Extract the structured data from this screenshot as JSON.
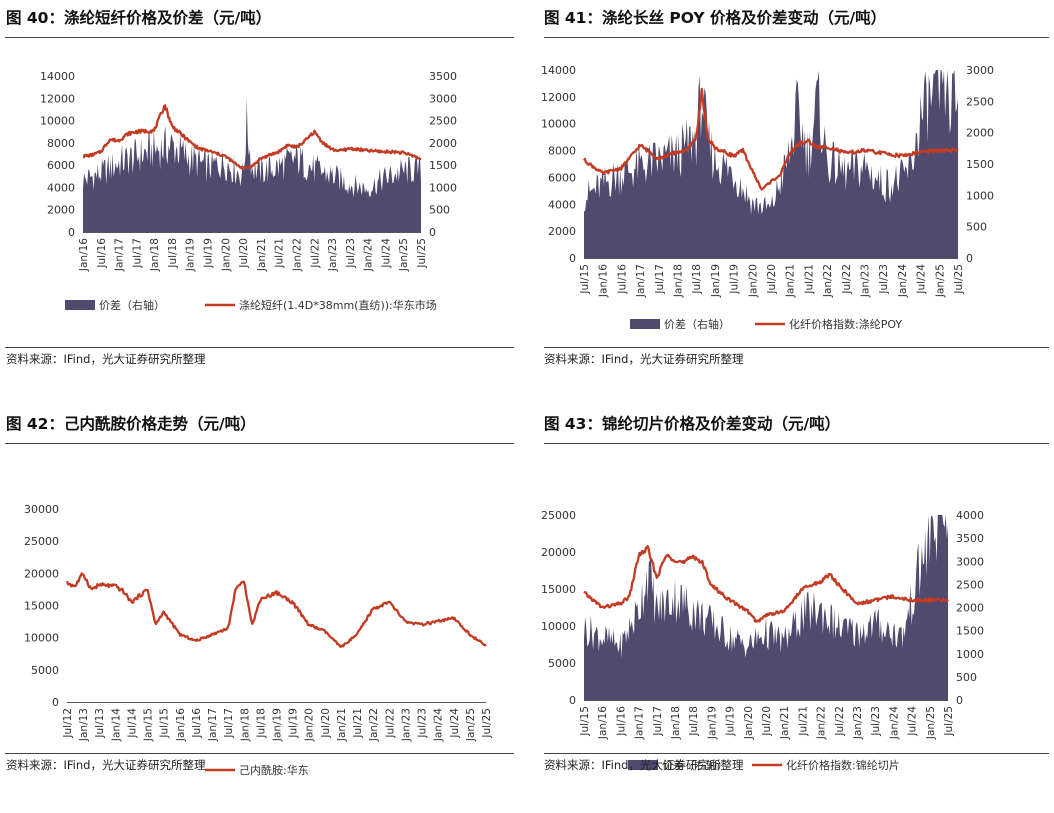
{
  "source_text": "资料来源：IFind，光大证券研究所整理",
  "colors": {
    "bar": "#4f4a6e",
    "line": "#c23b22",
    "axis": "#555555",
    "text": "#333333"
  },
  "chart_data": [
    {
      "id": "fig40",
      "type": "bar",
      "title": "图 40：涤纶短纤价格及价差（元/吨）",
      "x_ticks": [
        "Jan/16",
        "Jul/16",
        "Jan/17",
        "Jul/17",
        "Jan/18",
        "Jul/18",
        "Jan/19",
        "Jul/19",
        "Jan/20",
        "Jul/20",
        "Jan/21",
        "Jul/21",
        "Jan/22",
        "Jul/22",
        "Jan/23",
        "Jul/23",
        "Jan/24",
        "Jul/24",
        "Jan/25",
        "Jul/25"
      ],
      "y_left": {
        "min": 0,
        "max": 14000,
        "ticks": [
          0,
          2000,
          4000,
          6000,
          8000,
          10000,
          12000,
          14000
        ]
      },
      "y_right": {
        "min": 0,
        "max": 3500,
        "ticks": [
          0,
          500,
          1000,
          1500,
          2000,
          2500,
          3000,
          3500
        ]
      },
      "series": [
        {
          "name": "价差（右轴）",
          "type": "area",
          "axis": "right",
          "keys": [
            [
              0,
              1200
            ],
            [
              1,
              1350
            ],
            [
              2,
              1600
            ],
            [
              3,
              1750
            ],
            [
              4,
              1900
            ],
            [
              5,
              2000
            ],
            [
              6,
              1700
            ],
            [
              7,
              1500
            ],
            [
              8,
              1600
            ],
            [
              9,
              1300
            ],
            [
              9.2,
              2500
            ],
            [
              9.5,
              1500
            ],
            [
              10,
              1400
            ],
            [
              11,
              1500
            ],
            [
              12,
              1700
            ],
            [
              13,
              1450
            ],
            [
              14,
              1300
            ],
            [
              15,
              1100
            ],
            [
              16,
              1000
            ],
            [
              17,
              1250
            ],
            [
              18,
              1400
            ],
            [
              19,
              1450
            ],
            [
              19.5,
              1150
            ]
          ]
        },
        {
          "name": "涤纶短纤(1.4D*38mm(直纺)):华东市场",
          "type": "line",
          "axis": "left",
          "keys": [
            [
              0,
              6800
            ],
            [
              0.5,
              6900
            ],
            [
              1,
              7200
            ],
            [
              1.5,
              8300
            ],
            [
              2,
              8200
            ],
            [
              2.5,
              8800
            ],
            [
              3,
              9000
            ],
            [
              4,
              9100
            ],
            [
              4.6,
              11400
            ],
            [
              5,
              9500
            ],
            [
              5.5,
              8800
            ],
            [
              6,
              8100
            ],
            [
              6.5,
              7500
            ],
            [
              7,
              7300
            ],
            [
              8,
              6800
            ],
            [
              8.5,
              6200
            ],
            [
              9,
              5700
            ],
            [
              9.5,
              5900
            ],
            [
              10,
              6600
            ],
            [
              10.5,
              6900
            ],
            [
              11,
              7200
            ],
            [
              11.5,
              7800
            ],
            [
              12,
              7600
            ],
            [
              12.5,
              8200
            ],
            [
              13,
              9000
            ],
            [
              13.5,
              8000
            ],
            [
              14,
              7400
            ],
            [
              14.5,
              7300
            ],
            [
              15,
              7500
            ],
            [
              16,
              7300
            ],
            [
              17,
              7200
            ],
            [
              17.5,
              7200
            ],
            [
              18,
              7100
            ],
            [
              18.5,
              6900
            ],
            [
              19,
              6500
            ],
            [
              19.5,
              6700
            ]
          ]
        }
      ]
    },
    {
      "id": "fig41",
      "type": "bar",
      "title": "图 41：涤纶长丝 POY 价格及价差变动（元/吨）",
      "x_ticks": [
        "Jul/15",
        "Jan/16",
        "Jul/16",
        "Jan/17",
        "Jul/17",
        "Jan/18",
        "Jul/18",
        "Jan/19",
        "Jul/19",
        "Jan/20",
        "Jul/20",
        "Jan/21",
        "Jul/21",
        "Jan/22",
        "Jul/22",
        "Jan/23",
        "Jul/23",
        "Jan/24",
        "Jul/24",
        "Jan/25",
        "Jul/25"
      ],
      "y_left": {
        "min": 0,
        "max": 14000,
        "ticks": [
          0,
          2000,
          4000,
          6000,
          8000,
          10000,
          12000,
          14000
        ]
      },
      "y_right": {
        "min": 0,
        "max": 3000,
        "ticks": [
          0,
          500,
          1000,
          1500,
          2000,
          2500,
          3000
        ]
      },
      "series": [
        {
          "name": "价差（右轴）",
          "type": "area",
          "axis": "right",
          "keys": [
            [
              0,
              1000
            ],
            [
              1,
              1200
            ],
            [
              2,
              1400
            ],
            [
              3,
              1500
            ],
            [
              4,
              1600
            ],
            [
              5,
              1700
            ],
            [
              6,
              2000
            ],
            [
              6.3,
              2700
            ],
            [
              6.6,
              1900
            ],
            [
              7,
              1600
            ],
            [
              8,
              1400
            ],
            [
              9,
              900
            ],
            [
              10,
              800
            ],
            [
              11,
              1700
            ],
            [
              11.4,
              2400
            ],
            [
              12,
              1700
            ],
            [
              12.5,
              2600
            ],
            [
              13,
              1600
            ],
            [
              14,
              1400
            ],
            [
              15,
              1500
            ],
            [
              16,
              1200
            ],
            [
              17,
              1300
            ],
            [
              17.5,
              1500
            ],
            [
              18,
              2300
            ],
            [
              18.5,
              2600
            ],
            [
              19,
              2700
            ],
            [
              19.2,
              3100
            ],
            [
              19.5,
              2500
            ],
            [
              20,
              2600
            ]
          ]
        },
        {
          "name": "化纤价格指数:涤纶POY",
          "type": "line",
          "axis": "left",
          "keys": [
            [
              0,
              7300
            ],
            [
              1,
              6300
            ],
            [
              2,
              6700
            ],
            [
              3,
              8400
            ],
            [
              4,
              7400
            ],
            [
              5,
              7900
            ],
            [
              5.5,
              8000
            ],
            [
              6,
              9000
            ],
            [
              6.3,
              12400
            ],
            [
              6.6,
              9000
            ],
            [
              7,
              8200
            ],
            [
              8,
              7600
            ],
            [
              8.5,
              8000
            ],
            [
              9,
              6500
            ],
            [
              9.5,
              5100
            ],
            [
              10,
              5700
            ],
            [
              10.5,
              6200
            ],
            [
              11,
              7800
            ],
            [
              11.5,
              8500
            ],
            [
              12,
              8700
            ],
            [
              12.5,
              8200
            ],
            [
              13,
              8300
            ],
            [
              14,
              7800
            ],
            [
              15,
              8000
            ],
            [
              16,
              7800
            ],
            [
              17,
              7600
            ],
            [
              18,
              7900
            ],
            [
              19,
              8000
            ],
            [
              20,
              8000
            ]
          ]
        }
      ]
    },
    {
      "id": "fig42",
      "type": "line",
      "title": "图 42：己内酰胺价格走势（元/吨）",
      "x_ticks": [
        "Jul/12",
        "Jan/13",
        "Jul/13",
        "Jan/14",
        "Jul/14",
        "Jan/15",
        "Jul/15",
        "Jan/16",
        "Jul/16",
        "Jan/17",
        "Jul/17",
        "Jan/18",
        "Jul/18",
        "Jan/19",
        "Jul/19",
        "Jan/20",
        "Jul/20",
        "Jan/21",
        "Jul/21",
        "Jan/22",
        "Jul/22",
        "Jan/23",
        "Jul/23",
        "Jan/24",
        "Jul/24",
        "Jan/25",
        "Jul/25"
      ],
      "y_left": {
        "min": 0,
        "max": 30000,
        "ticks": [
          0,
          5000,
          10000,
          15000,
          20000,
          25000,
          30000
        ]
      },
      "series": [
        {
          "name": "己内酰胺:华东",
          "type": "line",
          "axis": "left",
          "keys": [
            [
              0,
              18500
            ],
            [
              0.5,
              18000
            ],
            [
              1,
              20000
            ],
            [
              1.5,
              17500
            ],
            [
              2,
              18200
            ],
            [
              3,
              18000
            ],
            [
              3.5,
              17200
            ],
            [
              4,
              15500
            ],
            [
              5,
              17500
            ],
            [
              5.5,
              12000
            ],
            [
              6,
              14000
            ],
            [
              7,
              10500
            ],
            [
              8,
              9500
            ],
            [
              9,
              10500
            ],
            [
              10,
              11500
            ],
            [
              10.5,
              18000
            ],
            [
              11,
              18500
            ],
            [
              11.5,
              12000
            ],
            [
              12,
              16000
            ],
            [
              13,
              17000
            ],
            [
              14,
              15500
            ],
            [
              15,
              12000
            ],
            [
              16,
              11000
            ],
            [
              17,
              8500
            ],
            [
              18,
              10500
            ],
            [
              19,
              14500
            ],
            [
              20,
              15500
            ],
            [
              21,
              12500
            ],
            [
              22,
              12000
            ],
            [
              23,
              12500
            ],
            [
              24,
              13000
            ],
            [
              25,
              10500
            ],
            [
              26,
              8700
            ]
          ]
        }
      ]
    },
    {
      "id": "fig43",
      "type": "bar",
      "title": "图 43：锦纶切片价格及价差变动（元/吨）",
      "x_ticks": [
        "Jul/15",
        "Jan/16",
        "Jul/16",
        "Jan/17",
        "Jul/17",
        "Jan/18",
        "Jul/18",
        "Jan/19",
        "Jul/19",
        "Jan/20",
        "Jul/20",
        "Jan/21",
        "Jul/21",
        "Jan/22",
        "Jul/22",
        "Jan/23",
        "Jul/23",
        "Jan/24",
        "Jul/24",
        "Jan/25",
        "Jul/25"
      ],
      "y_left": {
        "min": 0,
        "max": 25000,
        "ticks": [
          0,
          5000,
          10000,
          15000,
          20000,
          25000
        ]
      },
      "y_right": {
        "min": 0,
        "max": 4000,
        "ticks": [
          0,
          500,
          1000,
          1500,
          2000,
          2500,
          3000,
          3500,
          4000
        ]
      },
      "series": [
        {
          "name": "价差（右轴）",
          "type": "area",
          "axis": "right",
          "keys": [
            [
              0,
              1600
            ],
            [
              1,
              1400
            ],
            [
              2,
              1200
            ],
            [
              3,
              2000
            ],
            [
              3.5,
              2900
            ],
            [
              4,
              2000
            ],
            [
              5,
              2300
            ],
            [
              6,
              2000
            ],
            [
              7,
              1700
            ],
            [
              8,
              1400
            ],
            [
              9,
              1200
            ],
            [
              10,
              1500
            ],
            [
              11,
              1300
            ],
            [
              12,
              1900
            ],
            [
              13,
              2000
            ],
            [
              14,
              1600
            ],
            [
              15,
              1500
            ],
            [
              16,
              1700
            ],
            [
              17,
              1500
            ],
            [
              17.5,
              1400
            ],
            [
              18,
              2200
            ],
            [
              18.5,
              3000
            ],
            [
              19,
              3600
            ],
            [
              19.5,
              4000
            ],
            [
              20,
              4000
            ]
          ]
        },
        {
          "name": "化纤价格指数:锦纶切片",
          "type": "line",
          "axis": "left",
          "keys": [
            [
              0,
              14500
            ],
            [
              1,
              12500
            ],
            [
              2,
              13000
            ],
            [
              2.5,
              14000
            ],
            [
              3,
              19500
            ],
            [
              3.5,
              20500
            ],
            [
              4,
              16500
            ],
            [
              4.5,
              19500
            ],
            [
              5,
              19000
            ],
            [
              5.5,
              18500
            ],
            [
              6,
              19500
            ],
            [
              6.5,
              18500
            ],
            [
              7,
              15500
            ],
            [
              8,
              13500
            ],
            [
              9,
              12000
            ],
            [
              9.5,
              10500
            ],
            [
              10,
              11500
            ],
            [
              11,
              12000
            ],
            [
              12,
              15000
            ],
            [
              13,
              16000
            ],
            [
              13.5,
              17000
            ],
            [
              14,
              15500
            ],
            [
              15,
              13000
            ],
            [
              16,
              13500
            ],
            [
              17,
              14000
            ],
            [
              18,
              13500
            ],
            [
              19,
              13500
            ],
            [
              20,
              13500
            ]
          ]
        }
      ]
    }
  ]
}
